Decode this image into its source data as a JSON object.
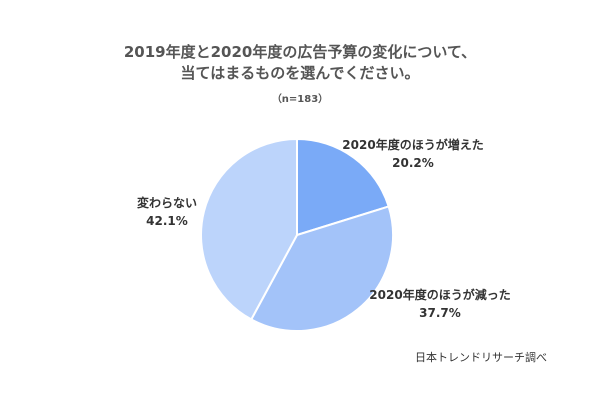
{
  "chart_data": {
    "type": "pie",
    "title_lines": [
      "2019年度と2020年度の広告予算の変化について、",
      "当てはまるものを選んでください。"
    ],
    "subtitle": "（n=183）",
    "slices": [
      {
        "label": "2020年度のほうが増えた",
        "value": 20.2,
        "value_text": "20.2%",
        "color": "#7aaaf7"
      },
      {
        "label": "2020年度のほうが減った",
        "value": 37.7,
        "value_text": "37.7%",
        "color": "#a3c3f9"
      },
      {
        "label": "変わらない",
        "value": 42.1,
        "value_text": "42.1%",
        "color": "#bcd4fb"
      }
    ],
    "start": "12 o'clock",
    "direction": "clockwise",
    "source": "日本トレンドリサーチ調べ"
  }
}
